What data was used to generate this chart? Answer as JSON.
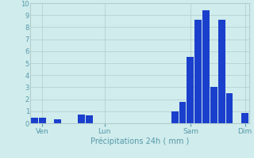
{
  "title": "",
  "xlabel": "Précipitations 24h ( mm )",
  "ylabel": "",
  "background_color": "#d0ecec",
  "bar_color": "#1a3fcc",
  "grid_color": "#b0cccc",
  "ylim": [
    0,
    10
  ],
  "yticks": [
    0,
    1,
    2,
    3,
    4,
    5,
    6,
    7,
    8,
    9,
    10
  ],
  "x_tick_labels": [
    "Ven",
    "Lun",
    "Sam",
    "Dim"
  ],
  "x_tick_positions": [
    1,
    9,
    20,
    27
  ],
  "bar_values": [
    0.45,
    0.45,
    0.0,
    0.35,
    0,
    0,
    0.7,
    0.65,
    0,
    0,
    0,
    0,
    0,
    0,
    0,
    0,
    0,
    0,
    1.0,
    1.8,
    5.5,
    8.6,
    9.4,
    3.0,
    8.6,
    2.5,
    0,
    0.85
  ]
}
